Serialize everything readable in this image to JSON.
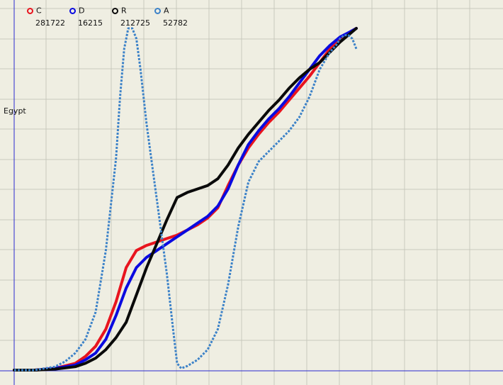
{
  "chart_data": {
    "type": "line",
    "ylabel": "Egypt",
    "grid": true,
    "legend_position": "top-left",
    "series": [
      {
        "name": "C",
        "count": "281722",
        "color": "#e8141e",
        "style": "solid",
        "points": [
          [
            0,
            0
          ],
          [
            10,
            0
          ],
          [
            20,
            0.5
          ],
          [
            30,
            2
          ],
          [
            35,
            4
          ],
          [
            40,
            7
          ],
          [
            45,
            12
          ],
          [
            50,
            20
          ],
          [
            55,
            30
          ],
          [
            60,
            35
          ],
          [
            65,
            36.5
          ],
          [
            70,
            37.5
          ],
          [
            75,
            38.5
          ],
          [
            80,
            39.5
          ],
          [
            85,
            41
          ],
          [
            90,
            42.5
          ],
          [
            95,
            44.5
          ],
          [
            100,
            47.5
          ],
          [
            105,
            54
          ],
          [
            110,
            60
          ],
          [
            115,
            65
          ],
          [
            120,
            69
          ],
          [
            125,
            72.5
          ],
          [
            130,
            75.5
          ],
          [
            135,
            79
          ],
          [
            140,
            82.5
          ],
          [
            145,
            86
          ],
          [
            150,
            90
          ],
          [
            155,
            94
          ],
          [
            160,
            97
          ],
          [
            165,
            99
          ],
          [
            168,
            100
          ]
        ]
      },
      {
        "name": "D",
        "count": "16215",
        "color": "#0a0ae0",
        "style": "solid",
        "points": [
          [
            0,
            0
          ],
          [
            10,
            0
          ],
          [
            20,
            0.5
          ],
          [
            30,
            1.5
          ],
          [
            35,
            3
          ],
          [
            40,
            5
          ],
          [
            45,
            9
          ],
          [
            50,
            16
          ],
          [
            55,
            24
          ],
          [
            60,
            30
          ],
          [
            65,
            33
          ],
          [
            70,
            35
          ],
          [
            75,
            37
          ],
          [
            80,
            39
          ],
          [
            85,
            41
          ],
          [
            90,
            43
          ],
          [
            95,
            45
          ],
          [
            100,
            48
          ],
          [
            105,
            53
          ],
          [
            110,
            60
          ],
          [
            115,
            66
          ],
          [
            120,
            70
          ],
          [
            125,
            73.5
          ],
          [
            130,
            76.5
          ],
          [
            135,
            80
          ],
          [
            140,
            84
          ],
          [
            145,
            88
          ],
          [
            150,
            92
          ],
          [
            155,
            95
          ],
          [
            160,
            97.5
          ],
          [
            165,
            99
          ],
          [
            168,
            100
          ]
        ]
      },
      {
        "name": "R",
        "count": "212725",
        "color": "#0a0a0a",
        "style": "solid",
        "points": [
          [
            0,
            0
          ],
          [
            10,
            0
          ],
          [
            20,
            0.3
          ],
          [
            30,
            1
          ],
          [
            35,
            2
          ],
          [
            40,
            3.5
          ],
          [
            45,
            6
          ],
          [
            50,
            9.5
          ],
          [
            55,
            14
          ],
          [
            60,
            22
          ],
          [
            65,
            30
          ],
          [
            70,
            37
          ],
          [
            75,
            44
          ],
          [
            80,
            50.5
          ],
          [
            85,
            52
          ],
          [
            90,
            53
          ],
          [
            95,
            54
          ],
          [
            100,
            56
          ],
          [
            105,
            60
          ],
          [
            110,
            65
          ],
          [
            115,
            69
          ],
          [
            120,
            72.5
          ],
          [
            125,
            76
          ],
          [
            130,
            79
          ],
          [
            135,
            82.5
          ],
          [
            140,
            85.5
          ],
          [
            145,
            88
          ],
          [
            150,
            90
          ],
          [
            155,
            93
          ],
          [
            160,
            96
          ],
          [
            165,
            98.5
          ],
          [
            168,
            100
          ]
        ]
      },
      {
        "name": "A",
        "count": "52782",
        "color": "#3c82c8",
        "style": "dotted",
        "points": [
          [
            0,
            0
          ],
          [
            10,
            0
          ],
          [
            20,
            1
          ],
          [
            25,
            2.5
          ],
          [
            30,
            5
          ],
          [
            35,
            9
          ],
          [
            40,
            17
          ],
          [
            45,
            35
          ],
          [
            50,
            62
          ],
          [
            52,
            80
          ],
          [
            54,
            94
          ],
          [
            56,
            100
          ],
          [
            58,
            100
          ],
          [
            60,
            97
          ],
          [
            62,
            88
          ],
          [
            65,
            72
          ],
          [
            70,
            50
          ],
          [
            75,
            28
          ],
          [
            78,
            12
          ],
          [
            80,
            2
          ],
          [
            82,
            0.5
          ],
          [
            85,
            1.2
          ],
          [
            90,
            3
          ],
          [
            95,
            6
          ],
          [
            100,
            12
          ],
          [
            105,
            25
          ],
          [
            110,
            42
          ],
          [
            115,
            55
          ],
          [
            120,
            61
          ],
          [
            125,
            64
          ],
          [
            130,
            67
          ],
          [
            135,
            70
          ],
          [
            140,
            74
          ],
          [
            145,
            80
          ],
          [
            150,
            88
          ],
          [
            155,
            93
          ],
          [
            158,
            95
          ],
          [
            160,
            97
          ],
          [
            162,
            98
          ],
          [
            164,
            98
          ],
          [
            166,
            97
          ],
          [
            168,
            94
          ]
        ]
      }
    ]
  }
}
